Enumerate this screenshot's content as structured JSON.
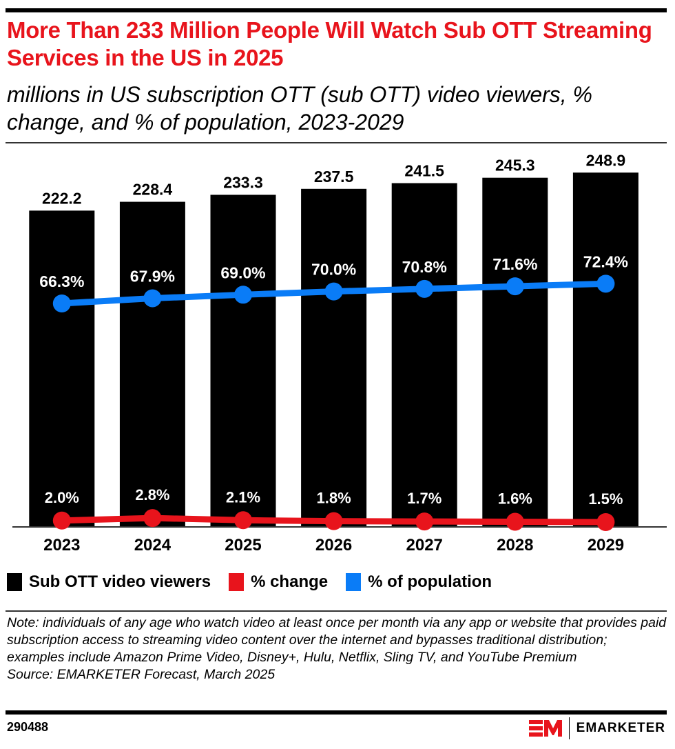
{
  "header": {
    "title": "More Than 233 Million People Will Watch Sub OTT Streaming Services in the US in 2025",
    "subtitle": "millions in US subscription OTT (sub OTT) video viewers, % change, and % of population, 2023-2029"
  },
  "colors": {
    "bars": "#000000",
    "change_line": "#e8141c",
    "population_line": "#0a7cf7",
    "title": "#e8141c"
  },
  "chart_data": {
    "type": "bar",
    "title": "More Than 233 Million People Will Watch Sub OTT Streaming Services in the US in 2025",
    "subtitle": "millions in US subscription OTT (sub OTT) video viewers, % change, and % of population, 2023-2029",
    "categories": [
      "2023",
      "2024",
      "2025",
      "2026",
      "2027",
      "2028",
      "2029"
    ],
    "series": [
      {
        "name": "Sub OTT video viewers",
        "type": "bar",
        "unit": "millions",
        "values": [
          222.2,
          228.4,
          233.3,
          237.5,
          241.5,
          245.3,
          248.9
        ],
        "labels": [
          "222.2",
          "228.4",
          "233.3",
          "237.5",
          "241.5",
          "245.3",
          "248.9"
        ]
      },
      {
        "name": "% change",
        "type": "line",
        "unit": "%",
        "values": [
          2.0,
          2.8,
          2.1,
          1.8,
          1.7,
          1.6,
          1.5
        ],
        "labels": [
          "2.0%",
          "2.8%",
          "2.1%",
          "1.8%",
          "1.7%",
          "1.6%",
          "1.5%"
        ]
      },
      {
        "name": "% of population",
        "type": "line",
        "unit": "%",
        "values": [
          66.3,
          67.9,
          69.0,
          70.0,
          70.8,
          71.6,
          72.4
        ],
        "labels": [
          "66.3%",
          "67.9%",
          "69.0%",
          "70.0%",
          "70.8%",
          "71.6%",
          "72.4%"
        ]
      }
    ],
    "xlabel": "",
    "ylabel": "",
    "ylim": [
      0,
      250
    ],
    "grid": false,
    "legend": "bottom-left"
  },
  "legend": [
    {
      "label": "Sub OTT video viewers",
      "color": "#000000"
    },
    {
      "label": "% change",
      "color": "#e8141c"
    },
    {
      "label": "% of population",
      "color": "#0a7cf7"
    }
  ],
  "footer": {
    "note": "Note: individuals of any age who watch video at least once per month via any app or website that provides paid subscription access to streaming video content over the internet and bypasses traditional distribution; examples include Amazon Prime Video, Disney+, Hulu, Netflix, Sling TV, and YouTube Premium",
    "source": "Source: EMARKETER Forecast, March 2025",
    "chart_id": "290488",
    "brand": "EMARKETER"
  }
}
